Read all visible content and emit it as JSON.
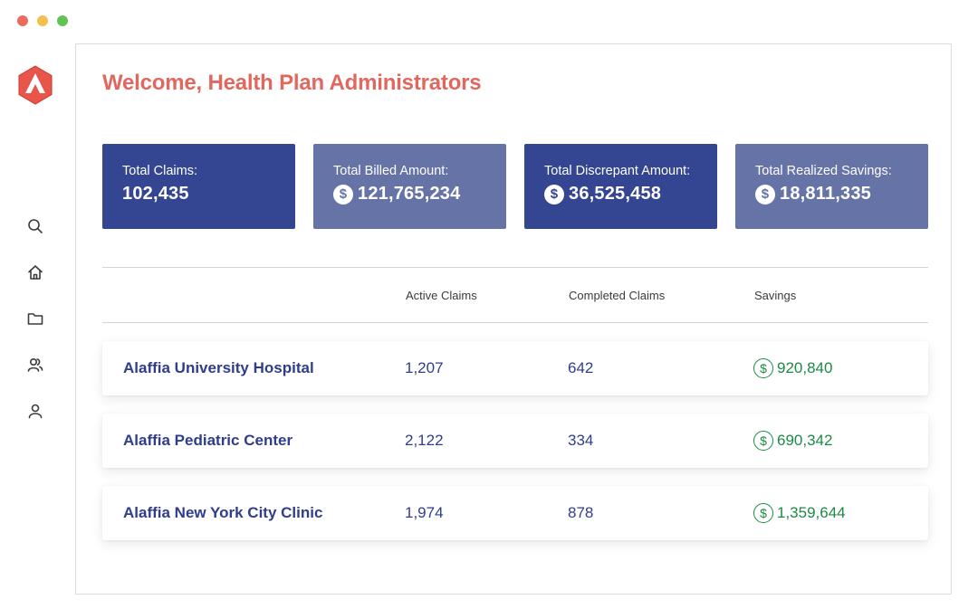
{
  "window": {
    "controls": [
      {
        "name": "close",
        "color": "#ed6a5e"
      },
      {
        "name": "minimize",
        "color": "#f4bf4f"
      },
      {
        "name": "maximize",
        "color": "#61c554"
      }
    ]
  },
  "sidebar": {
    "logo": "alaffia-logo",
    "items": [
      {
        "icon": "search-icon"
      },
      {
        "icon": "home-icon"
      },
      {
        "icon": "folder-icon"
      },
      {
        "icon": "users-icon"
      },
      {
        "icon": "user-icon"
      }
    ]
  },
  "header": {
    "title": "Welcome, Health Plan Administrators"
  },
  "stats": [
    {
      "label": "Total Claims:",
      "value": "102,435",
      "currency": false,
      "style": "dark"
    },
    {
      "label": "Total Billed Amount:",
      "value": "121,765,234",
      "currency": true,
      "style": "light"
    },
    {
      "label": "Total Discrepant Amount:",
      "value": "36,525,458",
      "currency": true,
      "style": "dark"
    },
    {
      "label": "Total Realized Savings:",
      "value": "18,811,335",
      "currency": true,
      "style": "light"
    }
  ],
  "table": {
    "columns": [
      "Active Claims",
      "Completed Claims",
      "Savings"
    ],
    "currency_symbol": "$",
    "rows": [
      {
        "name": "Alaffia University Hospital",
        "active": "1,207",
        "completed": "642",
        "savings": "920,840"
      },
      {
        "name": "Alaffia Pediatric Center",
        "active": "2,122",
        "completed": "334",
        "savings": "690,342"
      },
      {
        "name": "Alaffia New York City Clinic",
        "active": "1,974",
        "completed": "878",
        "savings": "1,359,644"
      }
    ]
  },
  "colors": {
    "accent": "#e2675e",
    "card_dark": "#344591",
    "card_light": "#6673a7",
    "text_primary": "#2f3d8c",
    "savings_green": "#1c8a46"
  }
}
